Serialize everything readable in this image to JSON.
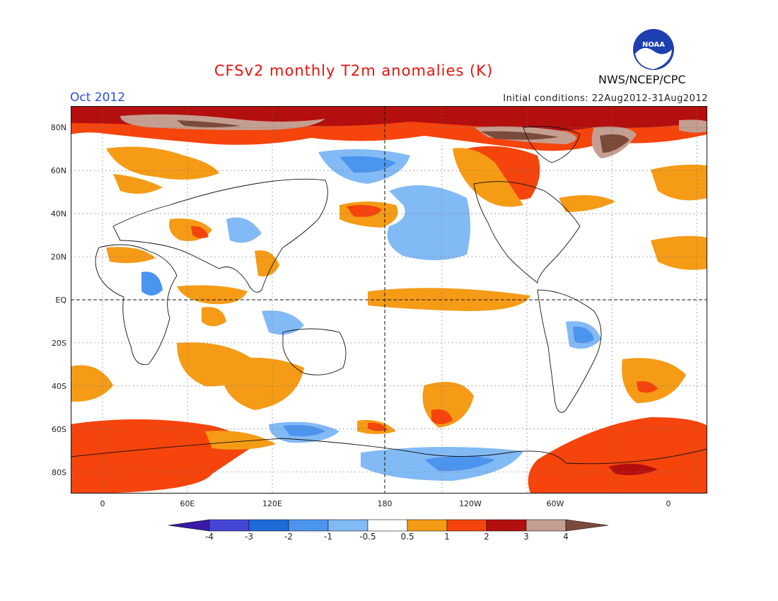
{
  "header": {
    "title": "CFSv2 monthly T2m anomalies (K)",
    "month": "Oct 2012",
    "initial_conditions": "Initial conditions: 22Aug2012-31Aug2012",
    "agency": "NWS/NCEP/CPC",
    "logo_text": "NOAA"
  },
  "map": {
    "lat_labels": [
      "80N",
      "60N",
      "40N",
      "20N",
      "EQ",
      "20S",
      "40S",
      "60S",
      "80S"
    ],
    "lon_labels": [
      "0",
      "60E",
      "120E",
      "180",
      "120W",
      "60W",
      "0"
    ]
  },
  "colorbar": {
    "labels": [
      "-4",
      "-3",
      "-2",
      "-1",
      "-0.5",
      "0.5",
      "1",
      "2",
      "3",
      "4"
    ],
    "colors": [
      "#3a1aa8",
      "#4646d6",
      "#1f6ad9",
      "#4c95ee",
      "#82baf5",
      "#ffffff",
      "#f59b16",
      "#f5440c",
      "#b40f0f",
      "#c49e90",
      "#7a4a3a"
    ]
  }
}
